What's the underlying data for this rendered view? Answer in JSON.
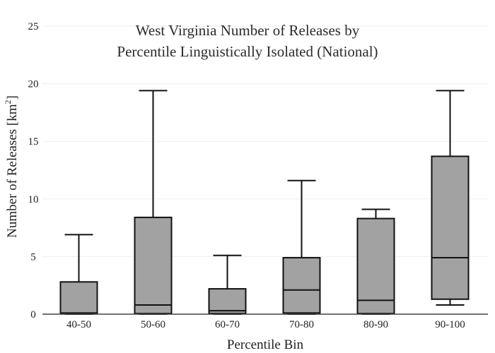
{
  "chart_data": {
    "type": "box",
    "title_lines": [
      "West Virginia Number of Releases by",
      "Percentile Linguistically Isolated (National)"
    ],
    "xlabel": "Percentile Bin",
    "ylabel": "Number of Releases  [km",
    "ylabel_superscript": "2",
    "ylabel_suffix": "]",
    "ylim": [
      0,
      25
    ],
    "yticks": [
      0,
      5,
      10,
      15,
      20,
      25
    ],
    "grid": true,
    "box_color": "#a2a2a2",
    "line_color": "#111111",
    "categories": [
      "40-50",
      "50-60",
      "60-70",
      "70-80",
      "80-90",
      "90-100"
    ],
    "boxes": [
      {
        "category": "40-50",
        "min": 0,
        "q1": 0.05,
        "median": 0.1,
        "q3": 2.8,
        "max": 6.9
      },
      {
        "category": "50-60",
        "min": 0,
        "q1": 0.05,
        "median": 0.8,
        "q3": 8.4,
        "max": 19.4
      },
      {
        "category": "60-70",
        "min": 0,
        "q1": 0.05,
        "median": 0.3,
        "q3": 2.2,
        "max": 5.1
      },
      {
        "category": "70-80",
        "min": 0,
        "q1": 0.1,
        "median": 2.1,
        "q3": 4.9,
        "max": 11.6
      },
      {
        "category": "80-90",
        "min": 0,
        "q1": 0.05,
        "median": 1.2,
        "q3": 8.3,
        "max": 9.1
      },
      {
        "category": "90-100",
        "min": 0.8,
        "q1": 1.3,
        "median": 4.9,
        "q3": 13.7,
        "max": 19.4
      }
    ]
  }
}
